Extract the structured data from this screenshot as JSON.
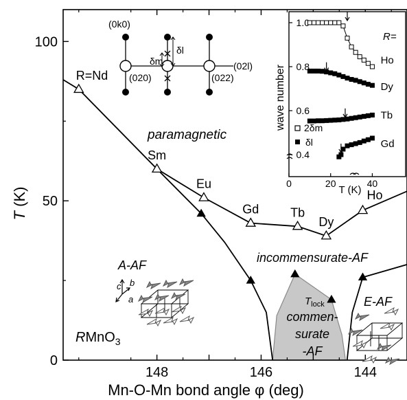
{
  "chart_data": {
    "type": "scatter",
    "title": "",
    "xlabel": "Mn-O-Mn bond angle φ  (deg)",
    "ylabel_main": "T",
    "ylabel_unit": " (K)",
    "x_reversed": true,
    "xlim": [
      149.8,
      143.2
    ],
    "ylim": [
      0,
      110
    ],
    "x_ticks": [
      148,
      146,
      144
    ],
    "y_ticks": [
      0,
      50,
      100
    ],
    "open_triangles": [
      {
        "x": 149.5,
        "y": 85,
        "label": "R=Nd"
      },
      {
        "x": 148.0,
        "y": 60,
        "label": "Sm"
      },
      {
        "x": 147.1,
        "y": 51,
        "label": "Eu"
      },
      {
        "x": 146.2,
        "y": 43,
        "label": "Gd"
      },
      {
        "x": 145.3,
        "y": 42,
        "label": "Tb"
      },
      {
        "x": 144.75,
        "y": 39,
        "label": "Dy"
      },
      {
        "x": 144.05,
        "y": 47,
        "label": "Ho"
      }
    ],
    "filled_triangles": [
      {
        "x": 147.15,
        "y": 46
      },
      {
        "x": 146.2,
        "y": 25
      },
      {
        "x": 145.35,
        "y": 27
      },
      {
        "x": 144.65,
        "y": 19
      },
      {
        "x": 144.05,
        "y": 26
      }
    ],
    "lines": {
      "neel": [
        [
          149.8,
          88
        ],
        [
          149.5,
          85
        ],
        [
          148.0,
          60
        ],
        [
          147.1,
          51
        ],
        [
          146.2,
          43
        ],
        [
          145.3,
          42
        ],
        [
          144.75,
          39
        ],
        [
          144.05,
          47
        ],
        [
          143.2,
          53
        ]
      ],
      "aaf": [
        [
          148.0,
          60
        ],
        [
          147.15,
          46
        ],
        [
          146.7,
          37
        ],
        [
          146.2,
          25
        ],
        [
          145.9,
          15
        ],
        [
          145.78,
          0
        ]
      ],
      "eaf": [
        [
          144.35,
          0
        ],
        [
          144.25,
          15
        ],
        [
          144.05,
          26
        ],
        [
          143.2,
          30
        ]
      ],
      "lock": [
        [
          145.78,
          0
        ],
        [
          145.7,
          14
        ],
        [
          145.35,
          27
        ],
        [
          144.65,
          19
        ],
        [
          144.45,
          8
        ],
        [
          144.38,
          0
        ]
      ]
    },
    "phase_labels": {
      "paramagnetic": "paramagnetic",
      "aaf": "A-AF",
      "incommensurate": "incommensurate-AF",
      "commensurate_1": "commen-",
      "commensurate_2": "surate",
      "commensurate_3": "-AF",
      "eaf": "E-AF",
      "tlock_main": "T",
      "tlock_sub": "lock",
      "compound_r": "R",
      "compound_rest": "MnO",
      "compound_sub": "3"
    },
    "axes_labels": {
      "a": "a",
      "b": "b",
      "c": "c"
    },
    "diagram": {
      "top_left": "(0k0)",
      "left": "(020)",
      "right": "(022)",
      "axis": "(02l)",
      "delta_m": "δm",
      "delta_l": "δl"
    },
    "inset": {
      "xlabel": "T (K)",
      "ylabel": "wave number",
      "xlim": [
        0,
        56
      ],
      "ylim": [
        0.3,
        1.05
      ],
      "x_ticks": [
        0,
        20,
        40
      ],
      "y_ticks": [
        0.4,
        0.6,
        0.8,
        1.0
      ],
      "r_label": "R=",
      "legend": [
        {
          "symbol": "open_square",
          "label": "2δm"
        },
        {
          "symbol": "filled_square",
          "label": "δl"
        }
      ],
      "series": [
        {
          "name": "Ho",
          "open": true,
          "points": [
            [
              10,
              1.0
            ],
            [
              12,
              1.0
            ],
            [
              14,
              1.0
            ],
            [
              16,
              1.0
            ],
            [
              18,
              1.0
            ],
            [
              20,
              1.0
            ],
            [
              22,
              1.0
            ],
            [
              24,
              1.0
            ],
            [
              26,
              0.985
            ],
            [
              28,
              0.93
            ],
            [
              30,
              0.89
            ],
            [
              32,
              0.865
            ],
            [
              34,
              0.845
            ],
            [
              36,
              0.83
            ],
            [
              38,
              0.815
            ],
            [
              40,
              0.8
            ]
          ]
        },
        {
          "name": "Dy",
          "open": false,
          "points": [
            [
              10,
              0.78
            ],
            [
              12,
              0.78
            ],
            [
              14,
              0.78
            ],
            [
              16,
              0.779
            ],
            [
              18,
              0.776
            ],
            [
              20,
              0.772
            ],
            [
              22,
              0.768
            ],
            [
              24,
              0.762
            ],
            [
              26,
              0.755
            ],
            [
              28,
              0.748
            ],
            [
              30,
              0.742
            ],
            [
              32,
              0.738
            ],
            [
              34,
              0.732
            ],
            [
              36,
              0.726
            ],
            [
              38,
              0.72
            ],
            [
              40,
              0.715
            ]
          ]
        },
        {
          "name": "Tb",
          "open": false,
          "points": [
            [
              10,
              0.553
            ],
            [
              12,
              0.553
            ],
            [
              14,
              0.554
            ],
            [
              16,
              0.554
            ],
            [
              18,
              0.555
            ],
            [
              20,
              0.556
            ],
            [
              22,
              0.557
            ],
            [
              24,
              0.558
            ],
            [
              26,
              0.56
            ],
            [
              28,
              0.562
            ],
            [
              30,
              0.565
            ],
            [
              32,
              0.568
            ],
            [
              34,
              0.571
            ],
            [
              36,
              0.574
            ],
            [
              38,
              0.577
            ],
            [
              40,
              0.58
            ]
          ]
        },
        {
          "name": "Gd",
          "open": false,
          "points": [
            [
              24,
              0.39
            ],
            [
              25,
              0.4
            ],
            [
              26,
              0.425
            ],
            [
              28,
              0.44
            ],
            [
              30,
              0.445
            ],
            [
              32,
              0.45
            ],
            [
              34,
              0.455
            ],
            [
              36,
              0.462
            ],
            [
              38,
              0.468
            ],
            [
              40,
              0.475
            ]
          ]
        }
      ],
      "arrows": [
        [
          18,
          0.82
        ],
        [
          28,
          1.05
        ],
        [
          27,
          0.61
        ],
        [
          25,
          0.45
        ]
      ]
    }
  }
}
